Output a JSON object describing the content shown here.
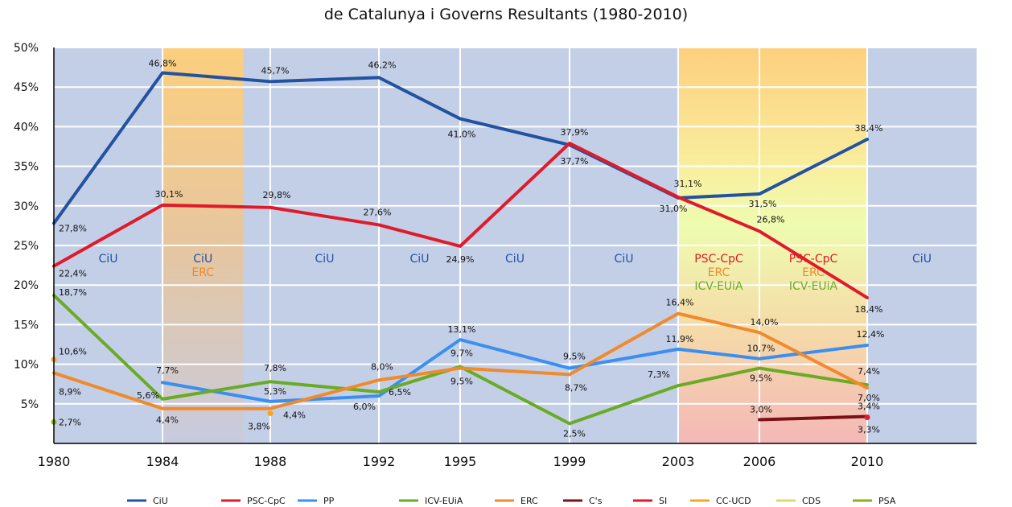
{
  "chart_data": {
    "type": "line",
    "title_lines": [
      "de Catalunya i Governs Resultants (1980-2010)"
    ],
    "x": [
      1980,
      1984,
      1988,
      1992,
      1995,
      1999,
      2003,
      2006,
      2010
    ],
    "x_tick_labels": [
      "1980",
      "1984",
      "1988",
      "1992",
      "1995",
      "1999",
      "2003",
      "2006",
      "2010"
    ],
    "xlim": [
      1980,
      2013.5
    ],
    "ylim": [
      0,
      50
    ],
    "y_ticks": [
      5,
      10,
      15,
      20,
      25,
      30,
      35,
      40,
      45,
      50
    ],
    "y_tick_labels": [
      "5%",
      "10%",
      "15%",
      "20%",
      "25%",
      "30%",
      "35%",
      "40%",
      "45%",
      "50%"
    ],
    "grid": true,
    "legend_position": "bottom",
    "series": [
      {
        "name": "CiU",
        "color": "#2352a0",
        "values": [
          27.8,
          46.8,
          45.7,
          46.2,
          41.0,
          37.7,
          31.0,
          31.5,
          38.4
        ],
        "labels": [
          "27,8%",
          "46,8%",
          "45,7%",
          "46,2%",
          "41,0%",
          "37,7%",
          "31,0%",
          "31,5%",
          "38,4%"
        ]
      },
      {
        "name": "PSC-CpC",
        "color": "#e01a2a",
        "values": [
          22.4,
          30.1,
          29.8,
          27.6,
          24.9,
          37.9,
          31.1,
          26.8,
          18.4
        ],
        "labels": [
          "22,4%",
          "30,1%",
          "29,8%",
          "27,6%",
          "24,9%",
          "37,9%",
          "31,1%",
          "26,8%",
          "18,4%"
        ]
      },
      {
        "name": "PP",
        "color": "#3a8ff0",
        "values": [
          null,
          7.7,
          5.3,
          6.0,
          13.1,
          9.5,
          11.9,
          10.7,
          12.4
        ],
        "labels": [
          null,
          "7,7%",
          "5,3%",
          "6,0%",
          "13,1%",
          "9,5%",
          "11,9%",
          "10,7%",
          "12,4%"
        ]
      },
      {
        "name": "ICV-EUiA",
        "color": "#6aab25",
        "values": [
          18.7,
          5.6,
          7.8,
          6.5,
          9.7,
          2.5,
          7.3,
          9.5,
          7.4
        ],
        "labels": [
          "18,7%",
          "5,6%",
          "7,8%",
          "6,5%",
          "9,7%",
          "2,5%",
          "7,3%",
          "9,5%",
          "7,4%"
        ]
      },
      {
        "name": "ERC",
        "color": "#f08a2a",
        "values": [
          8.9,
          4.4,
          4.4,
          8.0,
          9.5,
          8.7,
          16.4,
          14.0,
          7.0
        ],
        "labels": [
          "8,9%",
          "4,4%",
          "4,4%",
          "8,0%",
          "9,5%",
          "8,7%",
          "16,4%",
          "14,0%",
          "7,0%"
        ]
      },
      {
        "name": "C's",
        "color": "#7a1018",
        "values": [
          null,
          null,
          null,
          null,
          null,
          null,
          null,
          3.0,
          3.4
        ],
        "labels": [
          null,
          null,
          null,
          null,
          null,
          null,
          null,
          "3,0%",
          "3,4%"
        ]
      },
      {
        "name": "SI",
        "color": "#e01a2a",
        "values": [
          null,
          null,
          null,
          null,
          null,
          null,
          null,
          null,
          3.3
        ],
        "labels": [
          null,
          null,
          null,
          null,
          null,
          null,
          null,
          null,
          "3,3%"
        ]
      },
      {
        "name": "CC-UCD",
        "color": "#f5a81c",
        "values": [
          10.6,
          null,
          3.8,
          null,
          null,
          null,
          null,
          null,
          null
        ],
        "labels": [
          "10,6%",
          null,
          "3,8%",
          null,
          null,
          null,
          null,
          null,
          null
        ]
      },
      {
        "name": "CDS",
        "color": "#dfd86a",
        "values": [
          null,
          null,
          null,
          null,
          null,
          null,
          null,
          null,
          null
        ],
        "labels": [
          null,
          null,
          null,
          null,
          null,
          null,
          null,
          null,
          null
        ]
      },
      {
        "name": "PSA",
        "color": "#8ab020",
        "values": [
          2.7,
          null,
          null,
          null,
          null,
          null,
          null,
          null,
          null
        ],
        "labels": [
          "2,7%",
          null,
          null,
          null,
          null,
          null,
          null,
          null,
          null
        ]
      }
    ],
    "governments": [
      {
        "from": 1980,
        "to": 1984,
        "parties": [
          "CiU"
        ],
        "bg": "ciu"
      },
      {
        "from": 1984,
        "to": 1987,
        "parties": [
          "CiU",
          "ERC"
        ],
        "bg": "ciu-erc"
      },
      {
        "from": 1987,
        "to": 1988,
        "parties": [],
        "bg": "ciu"
      },
      {
        "from": 1988,
        "to": 1992,
        "parties": [
          "CiU"
        ],
        "bg": "ciu"
      },
      {
        "from": 1992,
        "to": 1995,
        "parties": [
          "CiU"
        ],
        "bg": "ciu"
      },
      {
        "from": 1995,
        "to": 1999,
        "parties": [
          "CiU"
        ],
        "bg": "ciu"
      },
      {
        "from": 1999,
        "to": 2003,
        "parties": [
          "CiU"
        ],
        "bg": "ciu"
      },
      {
        "from": 2003,
        "to": 2006,
        "parties": [
          "PSC-CpC",
          "ERC",
          "ICV-EUiA"
        ],
        "bg": "tripartit"
      },
      {
        "from": 2006,
        "to": 2010,
        "parties": [
          "PSC-CpC",
          "ERC",
          "ICV-EUiA"
        ],
        "bg": "tripartit"
      },
      {
        "from": 2010,
        "to": 2013.5,
        "parties": [
          "CiU"
        ],
        "bg": "ciu"
      }
    ],
    "party_colors": {
      "CiU": "#2352a0",
      "PSC-CpC": "#e01a2a",
      "ERC": "#f08a2a",
      "ICV-EUiA": "#6aab25"
    }
  }
}
